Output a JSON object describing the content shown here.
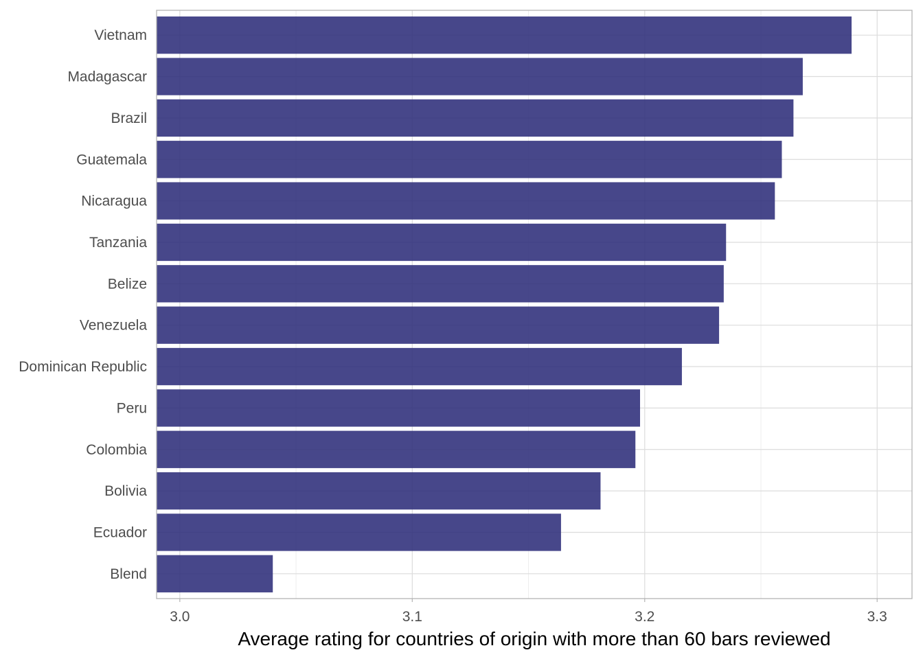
{
  "chart_data": {
    "type": "bar",
    "orientation": "horizontal",
    "title": "",
    "xlabel": "Average rating for countries of origin with more than 60 bars reviewed",
    "ylabel": "",
    "xlim": [
      2.99,
      3.315
    ],
    "x_ticks": [
      3.0,
      3.1,
      3.2,
      3.3
    ],
    "x_tick_labels": [
      "3.0",
      "3.1",
      "3.2",
      "3.3"
    ],
    "grid": true,
    "legend": "none",
    "bar_color": "#2e2e7a",
    "categories": [
      "Vietnam",
      "Madagascar",
      "Brazil",
      "Guatemala",
      "Nicaragua",
      "Tanzania",
      "Belize",
      "Venezuela",
      "Dominican Republic",
      "Peru",
      "Colombia",
      "Bolivia",
      "Ecuador",
      "Blend"
    ],
    "values": [
      3.289,
      3.268,
      3.264,
      3.259,
      3.256,
      3.235,
      3.234,
      3.232,
      3.216,
      3.198,
      3.196,
      3.181,
      3.164,
      3.04
    ]
  }
}
